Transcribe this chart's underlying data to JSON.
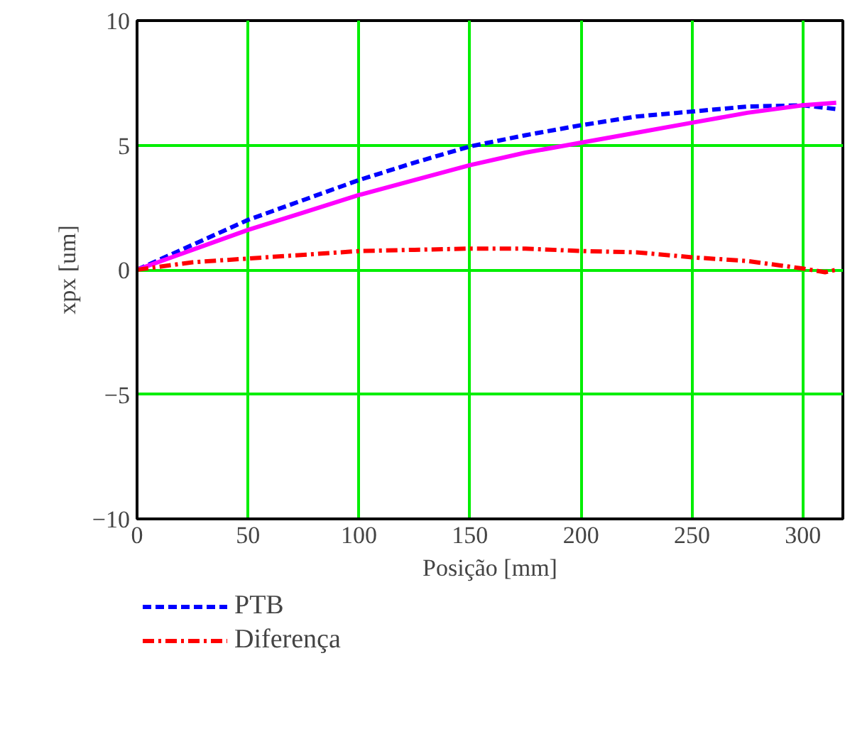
{
  "chart_data": {
    "type": "line",
    "xlabel": "Posição [mm]",
    "ylabel": "xpx [um]",
    "xlim": [
      0,
      318
    ],
    "ylim": [
      -10,
      10
    ],
    "xticks": [
      0,
      50,
      100,
      150,
      200,
      250,
      300
    ],
    "yticks": [
      {
        "value": -10,
        "label": "−10"
      },
      {
        "value": -5,
        "label": "−5"
      },
      0,
      5,
      10
    ],
    "grid": true,
    "legend": "bottom",
    "series": [
      {
        "name": "PTB",
        "color": "#0000ff",
        "line_style": "dashed",
        "x": [
          0,
          25,
          50,
          75,
          100,
          125,
          150,
          175,
          200,
          225,
          250,
          275,
          300,
          315
        ],
        "values": [
          0,
          1.0,
          2.0,
          2.8,
          3.6,
          4.3,
          4.95,
          5.4,
          5.8,
          6.15,
          6.35,
          6.55,
          6.6,
          6.45
        ]
      },
      {
        "color": "#ff00ff",
        "line_style": "solid",
        "x": [
          0,
          25,
          50,
          75,
          100,
          125,
          150,
          175,
          200,
          225,
          250,
          275,
          300,
          315
        ],
        "values": [
          0,
          0.8,
          1.6,
          2.3,
          3.0,
          3.6,
          4.2,
          4.7,
          5.1,
          5.5,
          5.9,
          6.3,
          6.6,
          6.7
        ]
      },
      {
        "name": "Diferença",
        "color": "#ff0000",
        "line_style": "dashdot",
        "x": [
          0,
          25,
          50,
          75,
          100,
          125,
          150,
          175,
          200,
          225,
          250,
          275,
          300,
          310,
          315
        ],
        "values": [
          0,
          0.3,
          0.45,
          0.6,
          0.75,
          0.8,
          0.85,
          0.85,
          0.75,
          0.7,
          0.5,
          0.35,
          0.05,
          -0.1,
          0
        ]
      }
    ]
  }
}
